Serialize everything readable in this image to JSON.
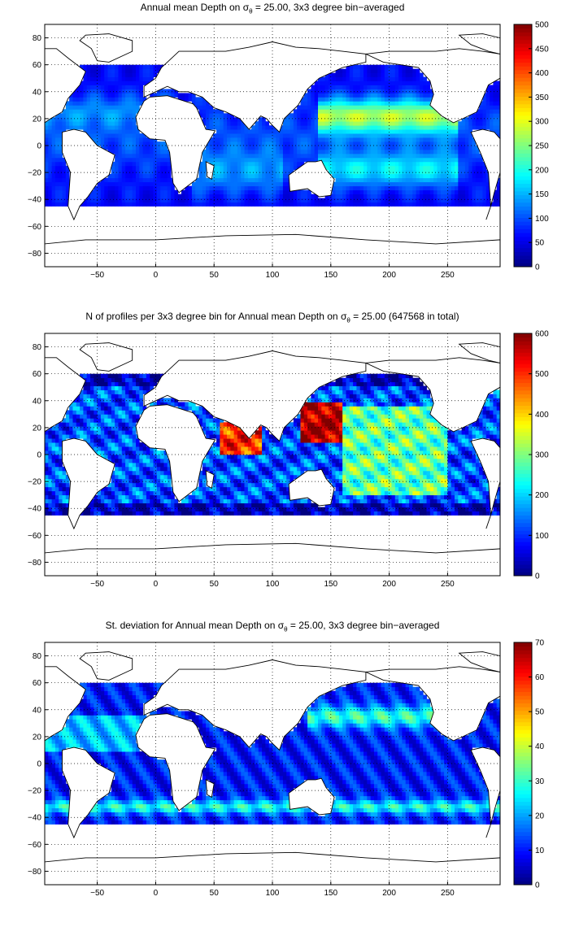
{
  "chart_data": [
    {
      "type": "heatmap",
      "title_pre": "Annual mean Depth on",
      "title_sigma": "σ",
      "title_sub": "θ",
      "title_post": " = 25.00, 3x3 degree bin−averaged",
      "xticks": [
        "−50",
        "0",
        "50",
        "100",
        "150",
        "200",
        "250"
      ],
      "yticks": [
        "80",
        "60",
        "40",
        "20",
        "0",
        "−20",
        "−40",
        "−60",
        "−80"
      ],
      "colorbar_ticks": [
        "500",
        "450",
        "400",
        "350",
        "300",
        "250",
        "200",
        "150",
        "100",
        "50",
        "0"
      ],
      "clim": [
        0,
        500
      ],
      "colormap": "jet",
      "grid": true
    },
    {
      "type": "heatmap",
      "title_pre": "N of profiles per 3x3 degree bin for Annual mean Depth on",
      "title_sigma": "σ",
      "title_sub": "θ",
      "title_post": " = 25.00 (647568 in total)",
      "xticks": [
        "−50",
        "0",
        "50",
        "100",
        "150",
        "200",
        "250"
      ],
      "yticks": [
        "80",
        "60",
        "40",
        "20",
        "0",
        "−20",
        "−40",
        "−60",
        "−80"
      ],
      "colorbar_ticks": [
        "600",
        "500",
        "400",
        "300",
        "200",
        "100",
        "0"
      ],
      "clim": [
        0,
        600
      ],
      "colormap": "jet",
      "grid": true
    },
    {
      "type": "heatmap",
      "title_pre": "St. deviation for Annual mean Depth on",
      "title_sigma": "σ",
      "title_sub": "θ",
      "title_post": " = 25.00, 3x3 degree bin−averaged",
      "xticks": [
        "−50",
        "0",
        "50",
        "100",
        "150",
        "200",
        "250"
      ],
      "yticks": [
        "80",
        "60",
        "40",
        "20",
        "0",
        "−20",
        "−40",
        "−60",
        "−80"
      ],
      "colorbar_ticks": [
        "70",
        "60",
        "50",
        "40",
        "30",
        "20",
        "10",
        "0"
      ],
      "clim": [
        0,
        70
      ],
      "colormap": "jet",
      "grid": true
    }
  ]
}
